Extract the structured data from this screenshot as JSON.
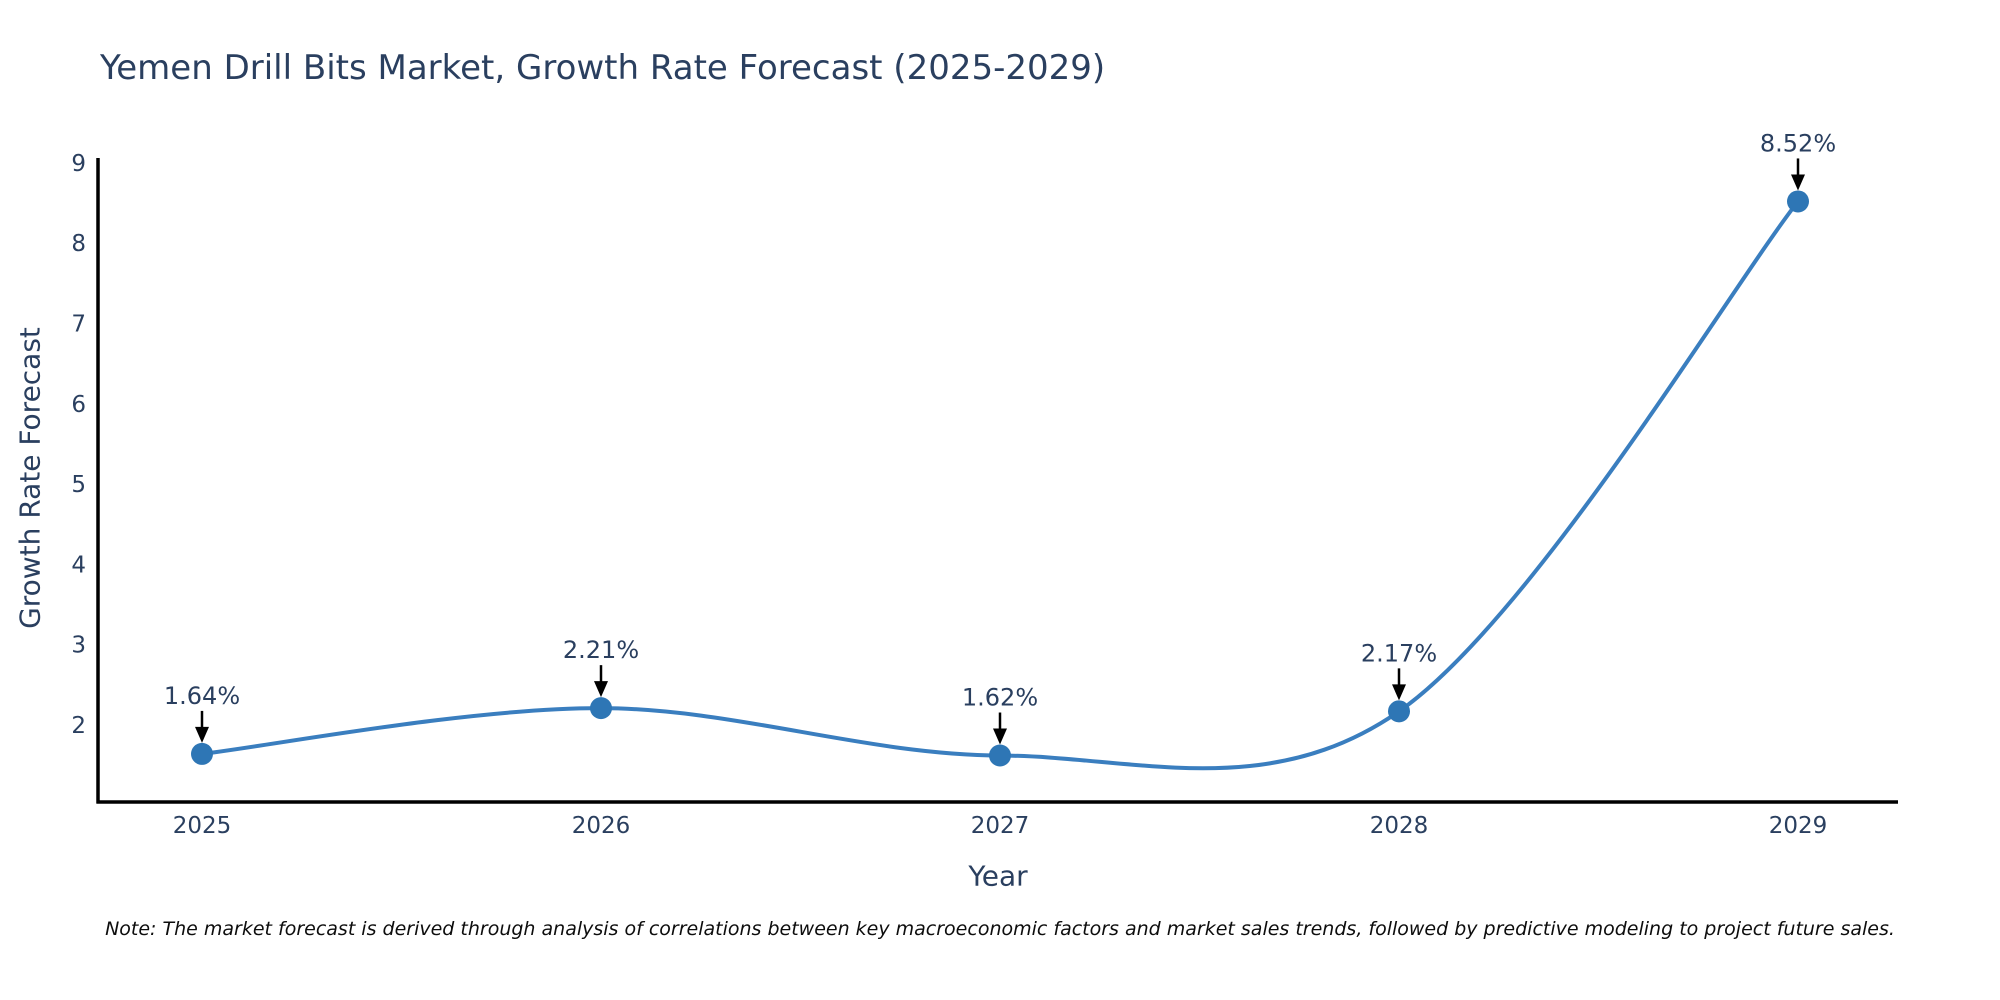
{
  "title": "Yemen Drill Bits Market, Growth Rate Forecast (2025-2029)",
  "note": "Note: The market forecast is derived through analysis of correlations between key macroeconomic factors and market sales trends, followed by predictive modeling to project future sales.",
  "chart_data": {
    "type": "line",
    "line_shape": "spline",
    "title": "Yemen Drill Bits Market, Growth Rate Forecast (2025-2029)",
    "xlabel": "Year",
    "ylabel": "Growth Rate Forecast",
    "categories": [
      "2025",
      "2026",
      "2027",
      "2028",
      "2029"
    ],
    "values": [
      1.64,
      2.21,
      1.62,
      2.17,
      8.52
    ],
    "point_labels": [
      "1.64%",
      "2.21%",
      "1.62%",
      "2.17%",
      "8.52%"
    ],
    "yticks": [
      2,
      3,
      4,
      5,
      6,
      7,
      8,
      9
    ],
    "ylim": [
      1.05,
      9.05
    ],
    "grid": false,
    "legend": "none",
    "colors": {
      "line": "#3a7ebf",
      "marker": "#2e76b5",
      "axis": "#000000",
      "text": "#2a3f5f",
      "annotation_text": "#2a3f5f",
      "arrow": "#000000",
      "background": "#ffffff"
    }
  }
}
